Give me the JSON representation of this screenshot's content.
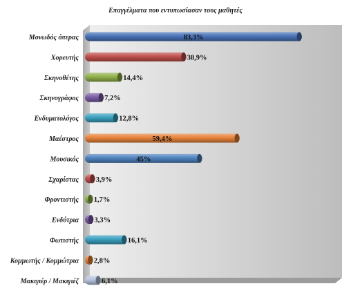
{
  "chart_data": {
    "type": "bar",
    "orientation": "horizontal",
    "title": "Επαγγέλματα που εντυπωσίασαν τους μαθητές",
    "xlabel": "",
    "ylabel": "",
    "xlim": [
      0,
      100
    ],
    "grid": false,
    "legend": "none",
    "categories": [
      "Μονωδός  όπερας",
      "Χορευτής",
      "Σκηνοθέτης",
      "Σκηνογράφος",
      "Ενδυματολόγος",
      "Μαέστρος",
      "Μουσικός",
      "Σχαρίστας",
      "Φροντιστής",
      "Ενδύτρια",
      "Φωτιστής",
      "Κομμωτής / Κομμώτρια",
      "Μακιγιέρ / Μακιγιέζ"
    ],
    "values": [
      83.3,
      38.9,
      14.4,
      7.2,
      12.8,
      59.4,
      45,
      3.9,
      1.7,
      3.3,
      16.1,
      2.8,
      6.1
    ],
    "value_labels": [
      "83,3%",
      "38,9%",
      "14,4%",
      "7,2%",
      "12,8%",
      "59,4%",
      "45%",
      "3,9%",
      "1,7%",
      "3,3%",
      "16,1%",
      "2,8%",
      "6,1%"
    ],
    "colors": [
      "#4a73b8",
      "#c0504d",
      "#8fb04a",
      "#7b5da6",
      "#3aa0bf",
      "#e7833a",
      "#4f81bd",
      "#c0504d",
      "#8fb04a",
      "#7b5da6",
      "#3aa0bf",
      "#e7833a",
      "#b5c3de"
    ]
  }
}
